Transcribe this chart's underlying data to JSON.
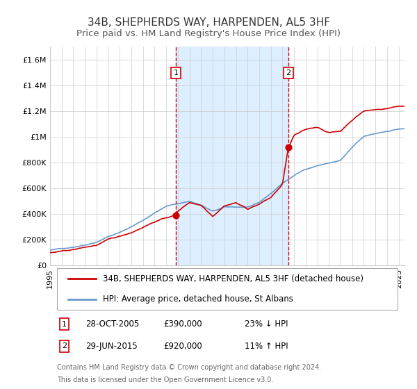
{
  "title": "34B, SHEPHERDS WAY, HARPENDEN, AL5 3HF",
  "subtitle": "Price paid vs. HM Land Registry's House Price Index (HPI)",
  "xlim": [
    1995.0,
    2025.5
  ],
  "ylim": [
    0,
    1700000
  ],
  "yticks": [
    0,
    200000,
    400000,
    600000,
    800000,
    1000000,
    1200000,
    1400000,
    1600000
  ],
  "ytick_labels": [
    "£0",
    "£200K",
    "£400K",
    "£600K",
    "£800K",
    "£1M",
    "£1.2M",
    "£1.4M",
    "£1.6M"
  ],
  "xtick_years": [
    1995,
    1996,
    1997,
    1998,
    1999,
    2000,
    2001,
    2002,
    2003,
    2004,
    2005,
    2006,
    2007,
    2008,
    2009,
    2010,
    2011,
    2012,
    2013,
    2014,
    2015,
    2016,
    2017,
    2018,
    2019,
    2020,
    2021,
    2022,
    2023,
    2024,
    2025
  ],
  "sale1_x": 2005.82,
  "sale1_y": 390000,
  "sale1_label": "1",
  "sale2_x": 2015.49,
  "sale2_y": 920000,
  "sale2_label": "2",
  "shaded_region_x1": 2005.82,
  "shaded_region_x2": 2015.49,
  "red_line_color": "#cc0000",
  "blue_line_color": "#6699cc",
  "shaded_color": "#ddeeff",
  "dot_color": "#cc0000",
  "marker_box_color": "#cc0000",
  "grid_color": "#cccccc",
  "legend_line1": "34B, SHEPHERDS WAY, HARPENDEN, AL5 3HF (detached house)",
  "legend_line2": "HPI: Average price, detached house, St Albans",
  "ann1_date": "28-OCT-2005",
  "ann1_price": "£390,000",
  "ann1_hpi": "23% ↓ HPI",
  "ann2_date": "29-JUN-2015",
  "ann2_price": "£920,000",
  "ann2_hpi": "11% ↑ HPI",
  "footer1": "Contains HM Land Registry data © Crown copyright and database right 2024.",
  "footer2": "This data is licensed under the Open Government Licence v3.0.",
  "title_fontsize": 11,
  "subtitle_fontsize": 9.5,
  "tick_fontsize": 8,
  "legend_fontsize": 8.5,
  "annotation_fontsize": 8.5,
  "footer_fontsize": 7
}
